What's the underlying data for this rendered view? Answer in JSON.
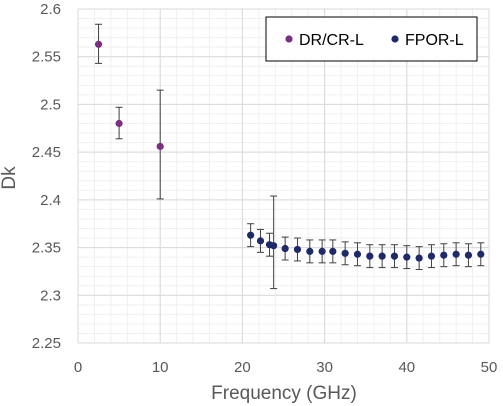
{
  "chart_data": {
    "type": "scatter",
    "title": "",
    "xlabel": "Frequency (GHz)",
    "ylabel": "Dk",
    "xlim": [
      0,
      50
    ],
    "ylim": [
      2.25,
      2.6
    ],
    "x_ticks": [
      0,
      10,
      20,
      30,
      40,
      50
    ],
    "x_tick_labels": [
      "0",
      "10",
      "20",
      "30",
      "40",
      "50"
    ],
    "y_ticks": [
      2.25,
      2.3,
      2.35,
      2.4,
      2.45,
      2.5,
      2.55,
      2.6
    ],
    "y_tick_labels": [
      "2.25",
      "2.3",
      "2.35",
      "2.4",
      "2.45",
      "2.5",
      "2.55",
      "2.6"
    ],
    "grid": true,
    "legend_position": "top-right",
    "series": [
      {
        "name": "DR/CR-L",
        "color": "#7B2E84",
        "x": [
          2.5,
          5,
          10
        ],
        "y": [
          2.563,
          2.48,
          2.456
        ],
        "err_low": [
          2.543,
          2.464,
          2.401
        ],
        "err_high": [
          2.584,
          2.497,
          2.515
        ]
      },
      {
        "name": "FPOR-L",
        "color": "#1F2A6B",
        "x": [
          21,
          22.2,
          23.3,
          23.8,
          25.2,
          26.7,
          28.2,
          29.7,
          31,
          32.5,
          34,
          35.5,
          37,
          38.5,
          40,
          41.5,
          43,
          44.5,
          46,
          47.5,
          49
        ],
        "y": [
          2.363,
          2.357,
          2.353,
          2.352,
          2.349,
          2.348,
          2.346,
          2.346,
          2.346,
          2.344,
          2.343,
          2.341,
          2.341,
          2.341,
          2.34,
          2.339,
          2.341,
          2.342,
          2.343,
          2.342,
          2.343
        ],
        "err_low": [
          2.351,
          2.345,
          2.341,
          2.307,
          2.337,
          2.336,
          2.334,
          2.334,
          2.334,
          2.332,
          2.331,
          2.329,
          2.329,
          2.329,
          2.328,
          2.327,
          2.329,
          2.33,
          2.331,
          2.33,
          2.331
        ],
        "err_high": [
          2.375,
          2.369,
          2.365,
          2.404,
          2.361,
          2.36,
          2.358,
          2.358,
          2.358,
          2.356,
          2.355,
          2.353,
          2.353,
          2.353,
          2.352,
          2.351,
          2.353,
          2.354,
          2.355,
          2.354,
          2.355
        ]
      }
    ]
  }
}
